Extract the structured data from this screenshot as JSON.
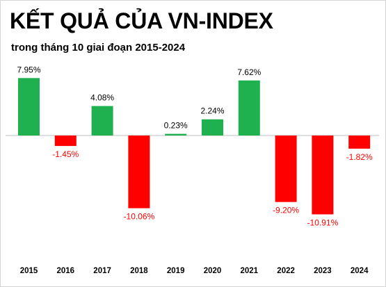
{
  "chart_data": {
    "type": "bar",
    "title": "KẾT QUẢ CỦA VN-INDEX",
    "subtitle": "trong tháng 10 giai đoạn 2015-2024",
    "categories": [
      "2015",
      "2016",
      "2017",
      "2018",
      "2019",
      "2020",
      "2021",
      "2022",
      "2023",
      "2024"
    ],
    "values": [
      7.95,
      -1.45,
      4.08,
      -10.06,
      0.23,
      2.24,
      7.62,
      -9.2,
      -10.91,
      -1.82
    ],
    "labels": [
      "7.95%",
      "-1.45%",
      "4.08%",
      "-10.06%",
      "0.23%",
      "2.24%",
      "7.62%",
      "-9.20%",
      "-10.91%",
      "-1.82%"
    ],
    "colors": {
      "positive": "#1fb050",
      "negative": "#ff0000",
      "positive_label": "#000000",
      "negative_label": "#ff0000",
      "axis": "#bfbfbf"
    },
    "grid": false,
    "legend": "none"
  }
}
